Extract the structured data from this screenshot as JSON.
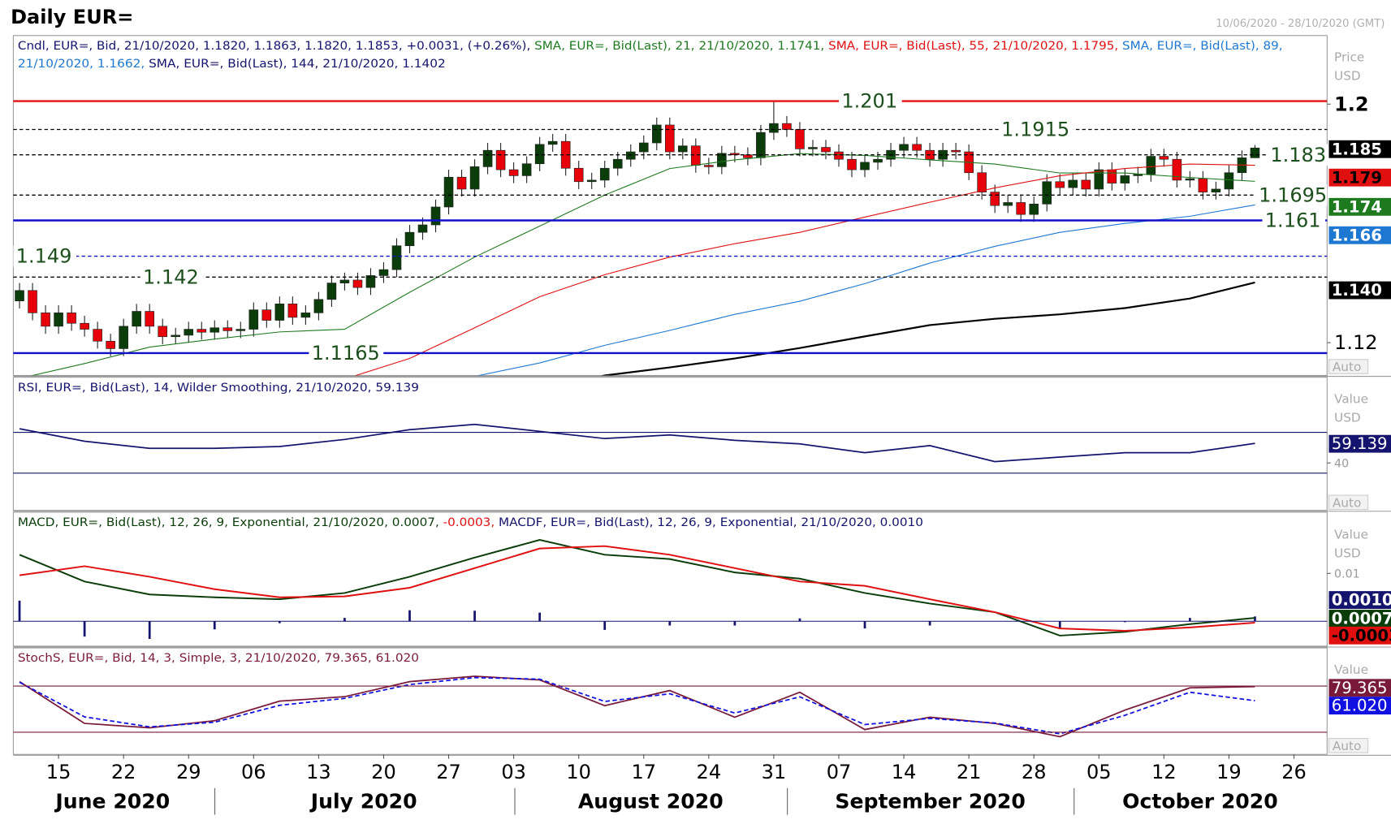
{
  "header": {
    "title": "Daily EUR=",
    "date_range": "10/06/2020 - 28/10/2020 (GMT)"
  },
  "x_axis": {
    "ticks": [
      {
        "value": 3,
        "label": "15"
      },
      {
        "value": 8,
        "label": "22"
      },
      {
        "value": 13,
        "label": "29"
      },
      {
        "value": 18,
        "label": "06"
      },
      {
        "value": 23,
        "label": "13"
      },
      {
        "value": 28,
        "label": "20"
      },
      {
        "value": 33,
        "label": "27"
      },
      {
        "value": 38,
        "label": "03"
      },
      {
        "value": 43,
        "label": "10"
      },
      {
        "value": 48,
        "label": "17"
      },
      {
        "value": 53,
        "label": "24"
      },
      {
        "value": 58,
        "label": "31"
      },
      {
        "value": 63,
        "label": "07"
      },
      {
        "value": 68,
        "label": "14"
      },
      {
        "value": 73,
        "label": "21"
      },
      {
        "value": 78,
        "label": "28"
      },
      {
        "value": 83,
        "label": "05"
      },
      {
        "value": 88,
        "label": "12"
      },
      {
        "value": 93,
        "label": "19"
      },
      {
        "value": 98,
        "label": "26"
      }
    ],
    "months": [
      "June 2020",
      "July 2020",
      "August 2020",
      "September 2020",
      "October 2020"
    ]
  },
  "chart_data": [
    {
      "type": "candlestick",
      "legend": [
        [
          {
            "text": "Cndl, EUR=, Bid, 21/10/2020, 1.1820, 1.1863, 1.1820, 1.1853, +0.0031, (+0.26%), ",
            "color": "#14146e"
          },
          {
            "text": "SMA, EUR=, Bid(Last),  21, 21/10/2020, 1.1741, ",
            "color": "#1e7a1e"
          },
          {
            "text": "SMA, EUR=, Bid(Last),  55, 21/10/2020, 1.1795, ",
            "color": "#e01010"
          },
          {
            "text": "SMA, EUR=, Bid(Last),  89, ",
            "color": "#1e78d2"
          }
        ],
        [
          {
            "text": "21/10/2020, 1.1662, ",
            "color": "#1e78d2"
          },
          {
            "text": "SMA, EUR=, Bid(Last),  144, 21/10/2020, 1.1402",
            "color": "#14146e"
          }
        ]
      ],
      "axis_label": [
        "Price",
        "USD"
      ],
      "auto": "Auto",
      "ylim": [
        1.109,
        1.223
      ],
      "yticks": [
        1.2,
        1.12
      ],
      "up_color": "#0b3d0b",
      "down_color": "#e8000b",
      "value_label": "1.185",
      "open": [
        1.134,
        1.1375,
        1.13,
        1.1255,
        1.13,
        1.1265,
        1.1245,
        1.1205,
        1.118,
        1.1255,
        1.1305,
        1.1255,
        1.122,
        1.1225,
        1.1245,
        1.1235,
        1.125,
        1.124,
        1.1245,
        1.131,
        1.1275,
        1.133,
        1.1285,
        1.13,
        1.1345,
        1.14,
        1.141,
        1.1385,
        1.1425,
        1.1445,
        1.1525,
        1.157,
        1.1595,
        1.1655,
        1.1755,
        1.1715,
        1.179,
        1.1845,
        1.178,
        1.176,
        1.18,
        1.1865,
        1.1875,
        1.1785,
        1.174,
        1.1745,
        1.1785,
        1.1815,
        1.184,
        1.187,
        1.193,
        1.184,
        1.186,
        1.1795,
        1.179,
        1.1835,
        1.183,
        1.182,
        1.1905,
        1.1935,
        1.1915,
        1.185,
        1.1855,
        1.184,
        1.1815,
        1.178,
        1.1805,
        1.1815,
        1.1845,
        1.1865,
        1.1845,
        1.1815,
        1.1845,
        1.184,
        1.177,
        1.1705,
        1.166,
        1.167,
        1.163,
        1.1665,
        1.174,
        1.172,
        1.1745,
        1.1715,
        1.178,
        1.1735,
        1.176,
        1.1765,
        1.1825,
        1.1815,
        1.1745,
        1.175,
        1.1705,
        1.1715,
        1.177,
        1.182
      ],
      "high": [
        1.14,
        1.14,
        1.1325,
        1.1325,
        1.1325,
        1.129,
        1.127,
        1.123,
        1.128,
        1.133,
        1.133,
        1.128,
        1.125,
        1.127,
        1.127,
        1.1275,
        1.1275,
        1.127,
        1.1335,
        1.1335,
        1.1355,
        1.1355,
        1.1325,
        1.137,
        1.1425,
        1.1435,
        1.1435,
        1.145,
        1.147,
        1.155,
        1.1595,
        1.162,
        1.168,
        1.178,
        1.178,
        1.1815,
        1.187,
        1.187,
        1.1805,
        1.1825,
        1.189,
        1.19,
        1.19,
        1.181,
        1.177,
        1.181,
        1.184,
        1.1865,
        1.1895,
        1.1955,
        1.1955,
        1.1885,
        1.1885,
        1.182,
        1.186,
        1.186,
        1.1855,
        1.193,
        1.201,
        1.196,
        1.194,
        1.188,
        1.188,
        1.1865,
        1.184,
        1.183,
        1.184,
        1.187,
        1.189,
        1.189,
        1.187,
        1.187,
        1.187,
        1.1865,
        1.1795,
        1.173,
        1.1695,
        1.1695,
        1.169,
        1.1765,
        1.1765,
        1.177,
        1.177,
        1.1805,
        1.1805,
        1.1785,
        1.179,
        1.185,
        1.185,
        1.184,
        1.1775,
        1.1775,
        1.174,
        1.1795,
        1.1845,
        1.1863
      ],
      "low": [
        1.1315,
        1.1275,
        1.123,
        1.123,
        1.124,
        1.122,
        1.118,
        1.1155,
        1.1155,
        1.123,
        1.123,
        1.1195,
        1.1195,
        1.12,
        1.121,
        1.121,
        1.1215,
        1.1215,
        1.122,
        1.125,
        1.125,
        1.126,
        1.126,
        1.1275,
        1.132,
        1.1375,
        1.136,
        1.136,
        1.14,
        1.142,
        1.15,
        1.1545,
        1.157,
        1.163,
        1.169,
        1.169,
        1.1765,
        1.1755,
        1.1735,
        1.1735,
        1.1775,
        1.184,
        1.176,
        1.1715,
        1.1715,
        1.172,
        1.176,
        1.179,
        1.1815,
        1.1845,
        1.1815,
        1.1815,
        1.177,
        1.1765,
        1.1765,
        1.1805,
        1.1795,
        1.1795,
        1.188,
        1.189,
        1.1825,
        1.1825,
        1.1815,
        1.179,
        1.1755,
        1.1755,
        1.178,
        1.179,
        1.182,
        1.182,
        1.179,
        1.179,
        1.1815,
        1.1745,
        1.168,
        1.1635,
        1.1635,
        1.1605,
        1.1605,
        1.164,
        1.1695,
        1.1695,
        1.169,
        1.169,
        1.171,
        1.171,
        1.1735,
        1.174,
        1.179,
        1.172,
        1.172,
        1.168,
        1.168,
        1.169,
        1.1745,
        1.182
      ],
      "close": [
        1.1375,
        1.13,
        1.1255,
        1.13,
        1.1265,
        1.1245,
        1.1205,
        1.118,
        1.1255,
        1.1305,
        1.1255,
        1.122,
        1.1225,
        1.1245,
        1.1235,
        1.125,
        1.124,
        1.1245,
        1.131,
        1.1275,
        1.133,
        1.1285,
        1.13,
        1.1345,
        1.14,
        1.141,
        1.1385,
        1.1425,
        1.1445,
        1.1525,
        1.157,
        1.1595,
        1.1655,
        1.1755,
        1.1715,
        1.179,
        1.1845,
        1.178,
        1.176,
        1.18,
        1.1865,
        1.1875,
        1.1785,
        1.174,
        1.1745,
        1.1785,
        1.1815,
        1.184,
        1.187,
        1.193,
        1.184,
        1.186,
        1.1795,
        1.179,
        1.1835,
        1.183,
        1.182,
        1.1905,
        1.1935,
        1.1915,
        1.185,
        1.1855,
        1.184,
        1.1815,
        1.178,
        1.1805,
        1.1815,
        1.1845,
        1.1865,
        1.1845,
        1.1815,
        1.1845,
        1.184,
        1.177,
        1.1705,
        1.166,
        1.167,
        1.163,
        1.1665,
        1.174,
        1.172,
        1.1745,
        1.1715,
        1.178,
        1.1735,
        1.176,
        1.1765,
        1.1825,
        1.1815,
        1.1745,
        1.175,
        1.1705,
        1.1715,
        1.177,
        1.182,
        1.1853
      ],
      "overlays": [
        {
          "color": "#1e7a1e",
          "value_label": "1.174",
          "values": [
            1.108,
            1.113,
            1.1185,
            1.1212,
            1.1236,
            1.1245,
            1.1369,
            1.1487,
            1.1591,
            1.1695,
            1.1784,
            1.1813,
            1.1834,
            1.1828,
            1.1813,
            1.1799,
            1.1769,
            1.1769,
            1.1754,
            1.1741
          ]
        },
        {
          "color": "#e01010",
          "value_label": "1.179",
          "values": [
            1.09,
            1.092,
            1.095,
            1.098,
            1.102,
            1.1078,
            1.1147,
            1.125,
            1.1354,
            1.1428,
            1.1487,
            1.1532,
            1.157,
            1.1621,
            1.1671,
            1.1719,
            1.176,
            1.1784,
            1.1799,
            1.1795
          ]
        },
        {
          "color": "#1e78d2",
          "value_label": "1.166",
          "values": [
            1.08,
            1.082,
            1.084,
            1.087,
            1.09,
            1.093,
            1.097,
            1.1087,
            1.1132,
            1.1191,
            1.1241,
            1.1295,
            1.1339,
            1.1398,
            1.1467,
            1.1523,
            1.157,
            1.16,
            1.1624,
            1.1662
          ]
        },
        {
          "color": "#000000",
          "value_label": "1.140",
          "values": [
            1.08,
            1.082,
            1.084,
            1.086,
            1.088,
            1.091,
            1.095,
            1.1,
            1.104,
            1.109,
            1.1117,
            1.1147,
            1.1182,
            1.1221,
            1.1259,
            1.128,
            1.1295,
            1.1316,
            1.1348,
            1.1402
          ]
        }
      ],
      "levels": [
        {
          "value": 1.201,
          "color": "#e01010",
          "dash": false
        },
        {
          "value": 1.1915,
          "color": "#000000",
          "dash": true
        },
        {
          "value": 1.183,
          "color": "#000000",
          "dash": true
        },
        {
          "value": 1.1695,
          "color": "#000000",
          "dash": true
        },
        {
          "value": 1.161,
          "color": "#1010c8",
          "dash": false
        },
        {
          "value": 1.149,
          "color": "#1010c8",
          "dash": true
        },
        {
          "value": 1.142,
          "color": "#000000",
          "dash": true
        },
        {
          "value": 1.1165,
          "color": "#1010c8",
          "dash": false
        }
      ]
    },
    {
      "type": "line",
      "legend": [
        [
          {
            "text": "RSI, EUR=, Bid(Last),  14, Wilder Smoothing, 21/10/2020, 59.139",
            "color": "#14146e"
          }
        ]
      ],
      "axis_label": [
        "Value",
        "USD"
      ],
      "auto": "Auto",
      "ylim": [
        -6.5,
        124
      ],
      "yticks": [
        40
      ],
      "levels": [
        70,
        30
      ],
      "level_color": "#14146e",
      "series": [
        {
          "color": "#14146e",
          "values": [
            73.5,
            61.3,
            54.3,
            54.3,
            56.1,
            63.0,
            72.6,
            77.8,
            70.9,
            63.9,
            67.4,
            62.2,
            58.7,
            50.0,
            57.0,
            41.3,
            45.7,
            50.0,
            50.0,
            59.139
          ]
        }
      ]
    },
    {
      "type": "macd",
      "legend": [
        [
          {
            "text": "MACD, EUR=, Bid(Last),  12, 26, 9, Exponential, 21/10/2020, 0.0007, ",
            "color": "#0b3d0b"
          },
          {
            "text": "-0.0003, ",
            "color": "#e01010"
          },
          {
            "text": "MACDF, EUR=, Bid(Last),  12, 26, 9, Exponential, 21/10/2020, 0.0010",
            "color": "#14146e"
          }
        ]
      ],
      "axis_label": [
        "Value",
        "USD"
      ],
      "ylim": [
        -0.0052,
        0.0228
      ],
      "yticks": [
        0.01
      ],
      "levels": [
        0
      ],
      "level_color": "#14146e",
      "series": [
        {
          "color": "#0b3d0b",
          "values": [
            0.0139,
            0.0083,
            0.0056,
            0.005,
            0.0046,
            0.0059,
            0.0093,
            0.0133,
            0.017,
            0.0139,
            0.013,
            0.0102,
            0.0089,
            0.0059,
            0.0037,
            0.0019,
            -0.003,
            -0.0022,
            -0.0006,
            0.0007
          ]
        },
        {
          "color": "#e01010",
          "values": [
            0.0096,
            0.0115,
            0.0093,
            0.0067,
            0.005,
            0.0052,
            0.007,
            0.0111,
            0.0152,
            0.0157,
            0.0139,
            0.0111,
            0.0083,
            0.0074,
            0.0046,
            0.0019,
            -0.0015,
            -0.002,
            -0.0013,
            -0.0003
          ]
        }
      ],
      "histogram": {
        "color": "#14146e",
        "value_label": "0.0010",
        "values": [
          0.0043,
          -0.0032,
          -0.0037,
          -0.0017,
          -0.0004,
          0.0007,
          0.0023,
          0.0022,
          0.0018,
          -0.0018,
          -0.0009,
          -0.0009,
          0.0006,
          -0.0015,
          -0.0009,
          0,
          -0.0015,
          -0.0002,
          0.0007,
          0.001
        ]
      }
    },
    {
      "type": "line",
      "legend": [
        [
          {
            "text": "StochS, EUR=, Bid,  14, 3, Simple, 3, 21/10/2020, 79.365, 61.020",
            "color": "#7a1a3a"
          }
        ]
      ],
      "axis_label": [
        "Value"
      ],
      "auto": "Auto",
      "ylim": [
        -8.8,
        129.6
      ],
      "yticks": [],
      "levels": [
        80,
        20
      ],
      "level_color": "#7a1a3a",
      "series": [
        {
          "color": "#7a1a3a",
          "values": [
            85.8,
            31.5,
            25.8,
            35,
            60.4,
            66.2,
            85.8,
            92.7,
            88,
            54.6,
            74.2,
            39.6,
            72,
            23.5,
            39.6,
            31.5,
            14.2,
            48.8,
            77.7,
            79.365
          ]
        },
        {
          "color": "#1010e0",
          "dash": true,
          "value_label": "61.020",
          "values": [
            85,
            40,
            27,
            33,
            55,
            64,
            82,
            91,
            89,
            60,
            70,
            45,
            66,
            30,
            38,
            32,
            18,
            42,
            72,
            61.02
          ]
        }
      ]
    }
  ]
}
